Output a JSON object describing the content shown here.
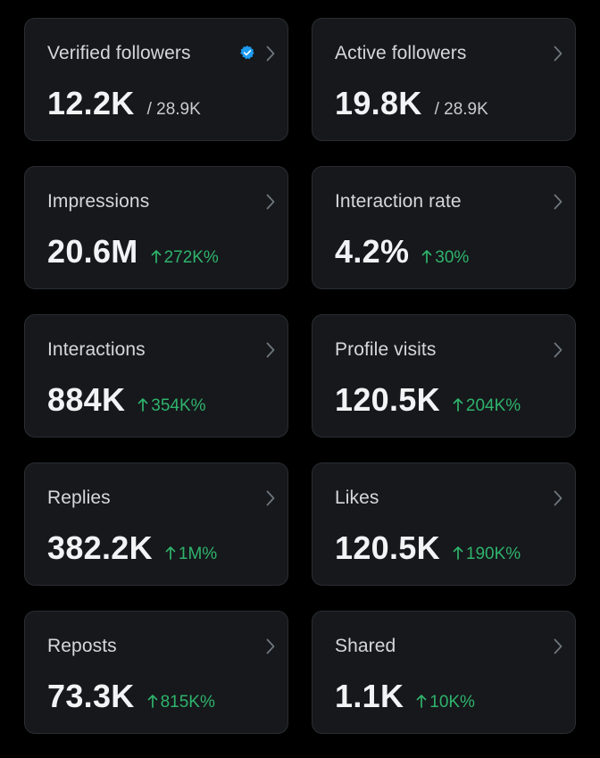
{
  "colors": {
    "background": "#000000",
    "card": "#16181c",
    "card_border": "#2a2d32",
    "positive": "#2fb36b",
    "verified": "#1d9bf0"
  },
  "cards": [
    {
      "title": "Verified followers",
      "value": "12.2K",
      "secondary": "/ 28.9K",
      "change": "",
      "verified": true
    },
    {
      "title": "Active followers",
      "value": "19.8K",
      "secondary": "/ 28.9K",
      "change": ""
    },
    {
      "title": "Impressions",
      "value": "20.6M",
      "secondary": "",
      "change": "272K%"
    },
    {
      "title": "Interaction rate",
      "value": "4.2%",
      "secondary": "",
      "change": "30%"
    },
    {
      "title": "Interactions",
      "value": "884K",
      "secondary": "",
      "change": "354K%"
    },
    {
      "title": "Profile visits",
      "value": "120.5K",
      "secondary": "",
      "change": "204K%"
    },
    {
      "title": "Replies",
      "value": "382.2K",
      "secondary": "",
      "change": "1M%"
    },
    {
      "title": "Likes",
      "value": "120.5K",
      "secondary": "",
      "change": "190K%"
    },
    {
      "title": "Reposts",
      "value": "73.3K",
      "secondary": "",
      "change": "815K%"
    },
    {
      "title": "Shared",
      "value": "1.1K",
      "secondary": "",
      "change": "10K%"
    }
  ],
  "icons": {
    "verified": "verified-badge-icon",
    "chevron": "chevron-right-icon",
    "arrow": "arrow-up-icon"
  }
}
